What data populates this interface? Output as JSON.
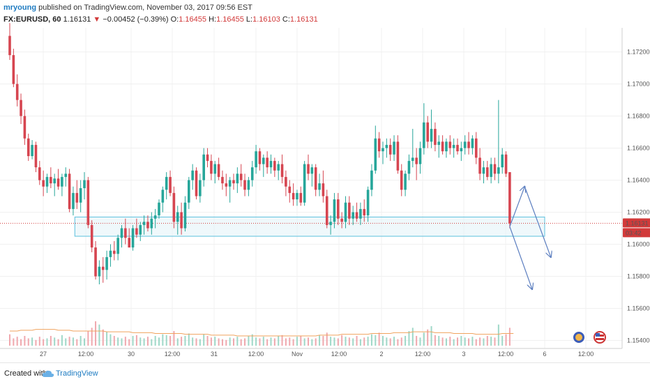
{
  "header": {
    "user": "mryoung",
    "published": "published on TradingView.com, November 03, 2017 09:56 EST",
    "symbol": "FX:EURUSD, 60",
    "last": "1.16131",
    "change_arrow": "▼",
    "change": "−0.00452 (−0.39%)",
    "o_label": "O:",
    "o_value": "1.16455",
    "h_label": "H:",
    "h_value": "1.16455",
    "l_label": "L:",
    "l_value": "1.16103",
    "c_label": "C:",
    "c_value": "1.16131"
  },
  "footer": {
    "created": "Created with",
    "brand": "TradingView",
    "logo_icon": "tradingview-cloud-icon"
  },
  "chart_data": {
    "type": "candlestick",
    "symbol": "FX:EURUSD",
    "interval": "60",
    "yticks": [
      "1.17200",
      "1.17000",
      "1.16800",
      "1.16600",
      "1.16400",
      "1.16200",
      "1.16000",
      "1.15800",
      "1.15600",
      "1.15400"
    ],
    "xticks": [
      "27",
      "12:00",
      "30",
      "12:00",
      "31",
      "12:00",
      "Nov",
      "12:00",
      "2",
      "12:00",
      "3",
      "12:00",
      "6",
      "12:00"
    ],
    "ylim": [
      1.1535,
      1.1735
    ],
    "candles": [
      {
        "o": 1.173,
        "h": 1.1738,
        "l": 1.1715,
        "c": 1.1718
      },
      {
        "o": 1.1718,
        "h": 1.1722,
        "l": 1.1698,
        "c": 1.17
      },
      {
        "o": 1.17,
        "h": 1.1706,
        "l": 1.1686,
        "c": 1.169
      },
      {
        "o": 1.169,
        "h": 1.1694,
        "l": 1.1675,
        "c": 1.168
      },
      {
        "o": 1.168,
        "h": 1.1684,
        "l": 1.1662,
        "c": 1.1666
      },
      {
        "o": 1.1666,
        "h": 1.1669,
        "l": 1.1652,
        "c": 1.1655
      },
      {
        "o": 1.1655,
        "h": 1.1665,
        "l": 1.1653,
        "c": 1.1662
      },
      {
        "o": 1.1662,
        "h": 1.1664,
        "l": 1.1645,
        "c": 1.1648
      },
      {
        "o": 1.1648,
        "h": 1.1652,
        "l": 1.1637,
        "c": 1.164
      },
      {
        "o": 1.164,
        "h": 1.1646,
        "l": 1.163,
        "c": 1.1636
      },
      {
        "o": 1.1636,
        "h": 1.1644,
        "l": 1.1632,
        "c": 1.1642
      },
      {
        "o": 1.1642,
        "h": 1.1648,
        "l": 1.1635,
        "c": 1.1638
      },
      {
        "o": 1.1638,
        "h": 1.1644,
        "l": 1.163,
        "c": 1.1641
      },
      {
        "o": 1.1641,
        "h": 1.1647,
        "l": 1.1634,
        "c": 1.1636
      },
      {
        "o": 1.1636,
        "h": 1.1644,
        "l": 1.163,
        "c": 1.1642
      },
      {
        "o": 1.1642,
        "h": 1.1648,
        "l": 1.1636,
        "c": 1.1644
      },
      {
        "o": 1.1644,
        "h": 1.1647,
        "l": 1.162,
        "c": 1.1622
      },
      {
        "o": 1.1622,
        "h": 1.1636,
        "l": 1.1618,
        "c": 1.1632
      },
      {
        "o": 1.1632,
        "h": 1.164,
        "l": 1.1622,
        "c": 1.1626
      },
      {
        "o": 1.1626,
        "h": 1.164,
        "l": 1.162,
        "c": 1.1635
      },
      {
        "o": 1.1635,
        "h": 1.1645,
        "l": 1.1628,
        "c": 1.164
      },
      {
        "o": 1.164,
        "h": 1.1642,
        "l": 1.161,
        "c": 1.1612
      },
      {
        "o": 1.1612,
        "h": 1.1615,
        "l": 1.1595,
        "c": 1.1598
      },
      {
        "o": 1.1598,
        "h": 1.1602,
        "l": 1.1578,
        "c": 1.158
      },
      {
        "o": 1.158,
        "h": 1.159,
        "l": 1.1575,
        "c": 1.1586
      },
      {
        "o": 1.1586,
        "h": 1.1592,
        "l": 1.1576,
        "c": 1.1584
      },
      {
        "o": 1.1584,
        "h": 1.1596,
        "l": 1.1578,
        "c": 1.1592
      },
      {
        "o": 1.1592,
        "h": 1.16,
        "l": 1.1586,
        "c": 1.1596
      },
      {
        "o": 1.1596,
        "h": 1.1602,
        "l": 1.159,
        "c": 1.1594
      },
      {
        "o": 1.1594,
        "h": 1.1606,
        "l": 1.159,
        "c": 1.1604
      },
      {
        "o": 1.1604,
        "h": 1.1612,
        "l": 1.1598,
        "c": 1.161
      },
      {
        "o": 1.161,
        "h": 1.1616,
        "l": 1.16,
        "c": 1.1604
      },
      {
        "o": 1.1604,
        "h": 1.161,
        "l": 1.1598,
        "c": 1.1598
      },
      {
        "o": 1.1598,
        "h": 1.1612,
        "l": 1.1596,
        "c": 1.161
      },
      {
        "o": 1.161,
        "h": 1.1616,
        "l": 1.1604,
        "c": 1.1606
      },
      {
        "o": 1.1606,
        "h": 1.1614,
        "l": 1.1602,
        "c": 1.1612
      },
      {
        "o": 1.1612,
        "h": 1.1618,
        "l": 1.1606,
        "c": 1.1614
      },
      {
        "o": 1.1614,
        "h": 1.1618,
        "l": 1.1608,
        "c": 1.161
      },
      {
        "o": 1.161,
        "h": 1.162,
        "l": 1.1606,
        "c": 1.1616
      },
      {
        "o": 1.1616,
        "h": 1.1622,
        "l": 1.161,
        "c": 1.1618
      },
      {
        "o": 1.1618,
        "h": 1.1628,
        "l": 1.1616,
        "c": 1.1626
      },
      {
        "o": 1.1626,
        "h": 1.1636,
        "l": 1.162,
        "c": 1.1634
      },
      {
        "o": 1.1634,
        "h": 1.1645,
        "l": 1.1628,
        "c": 1.1642
      },
      {
        "o": 1.1642,
        "h": 1.1646,
        "l": 1.163,
        "c": 1.1632
      },
      {
        "o": 1.1632,
        "h": 1.1636,
        "l": 1.161,
        "c": 1.1614
      },
      {
        "o": 1.1614,
        "h": 1.1624,
        "l": 1.1606,
        "c": 1.162
      },
      {
        "o": 1.162,
        "h": 1.1626,
        "l": 1.1606,
        "c": 1.161
      },
      {
        "o": 1.161,
        "h": 1.163,
        "l": 1.1608,
        "c": 1.1626
      },
      {
        "o": 1.1626,
        "h": 1.1642,
        "l": 1.1622,
        "c": 1.164
      },
      {
        "o": 1.164,
        "h": 1.165,
        "l": 1.1634,
        "c": 1.1646
      },
      {
        "o": 1.1646,
        "h": 1.1648,
        "l": 1.1628,
        "c": 1.163
      },
      {
        "o": 1.163,
        "h": 1.1644,
        "l": 1.1626,
        "c": 1.164
      },
      {
        "o": 1.164,
        "h": 1.166,
        "l": 1.1636,
        "c": 1.1656
      },
      {
        "o": 1.1656,
        "h": 1.166,
        "l": 1.1648,
        "c": 1.1652
      },
      {
        "o": 1.1652,
        "h": 1.1656,
        "l": 1.164,
        "c": 1.1644
      },
      {
        "o": 1.1644,
        "h": 1.1652,
        "l": 1.1638,
        "c": 1.165
      },
      {
        "o": 1.165,
        "h": 1.1654,
        "l": 1.164,
        "c": 1.1642
      },
      {
        "o": 1.1642,
        "h": 1.1646,
        "l": 1.1634,
        "c": 1.1638
      },
      {
        "o": 1.1638,
        "h": 1.1644,
        "l": 1.163,
        "c": 1.1636
      },
      {
        "o": 1.1636,
        "h": 1.1642,
        "l": 1.1626,
        "c": 1.164
      },
      {
        "o": 1.164,
        "h": 1.1644,
        "l": 1.1634,
        "c": 1.1638
      },
      {
        "o": 1.1638,
        "h": 1.1648,
        "l": 1.1632,
        "c": 1.1644
      },
      {
        "o": 1.1644,
        "h": 1.165,
        "l": 1.1636,
        "c": 1.164
      },
      {
        "o": 1.164,
        "h": 1.1644,
        "l": 1.163,
        "c": 1.1634
      },
      {
        "o": 1.1634,
        "h": 1.1642,
        "l": 1.163,
        "c": 1.164
      },
      {
        "o": 1.164,
        "h": 1.1652,
        "l": 1.1636,
        "c": 1.1648
      },
      {
        "o": 1.1648,
        "h": 1.1662,
        "l": 1.1644,
        "c": 1.1658
      },
      {
        "o": 1.1658,
        "h": 1.166,
        "l": 1.1646,
        "c": 1.165
      },
      {
        "o": 1.165,
        "h": 1.1656,
        "l": 1.1642,
        "c": 1.1654
      },
      {
        "o": 1.1654,
        "h": 1.1658,
        "l": 1.1644,
        "c": 1.1648
      },
      {
        "o": 1.1648,
        "h": 1.1656,
        "l": 1.1644,
        "c": 1.1652
      },
      {
        "o": 1.1652,
        "h": 1.1654,
        "l": 1.1642,
        "c": 1.1646
      },
      {
        "o": 1.1646,
        "h": 1.1652,
        "l": 1.164,
        "c": 1.165
      },
      {
        "o": 1.165,
        "h": 1.1656,
        "l": 1.1638,
        "c": 1.1642
      },
      {
        "o": 1.1642,
        "h": 1.1646,
        "l": 1.163,
        "c": 1.1636
      },
      {
        "o": 1.1636,
        "h": 1.164,
        "l": 1.1626,
        "c": 1.1632
      },
      {
        "o": 1.1632,
        "h": 1.1638,
        "l": 1.1624,
        "c": 1.1628
      },
      {
        "o": 1.1628,
        "h": 1.1634,
        "l": 1.1624,
        "c": 1.1632
      },
      {
        "o": 1.1632,
        "h": 1.1636,
        "l": 1.1624,
        "c": 1.1626
      },
      {
        "o": 1.1626,
        "h": 1.1652,
        "l": 1.1624,
        "c": 1.165
      },
      {
        "o": 1.165,
        "h": 1.1656,
        "l": 1.164,
        "c": 1.1644
      },
      {
        "o": 1.1644,
        "h": 1.165,
        "l": 1.1636,
        "c": 1.1648
      },
      {
        "o": 1.1648,
        "h": 1.165,
        "l": 1.163,
        "c": 1.1634
      },
      {
        "o": 1.1634,
        "h": 1.1644,
        "l": 1.163,
        "c": 1.1638
      },
      {
        "o": 1.1638,
        "h": 1.1646,
        "l": 1.1626,
        "c": 1.163
      },
      {
        "o": 1.163,
        "h": 1.1634,
        "l": 1.161,
        "c": 1.1612
      },
      {
        "o": 1.1612,
        "h": 1.1618,
        "l": 1.1606,
        "c": 1.1614
      },
      {
        "o": 1.1614,
        "h": 1.1632,
        "l": 1.161,
        "c": 1.1628
      },
      {
        "o": 1.1628,
        "h": 1.1632,
        "l": 1.1612,
        "c": 1.1616
      },
      {
        "o": 1.1616,
        "h": 1.162,
        "l": 1.161,
        "c": 1.1614
      },
      {
        "o": 1.1614,
        "h": 1.163,
        "l": 1.161,
        "c": 1.1626
      },
      {
        "o": 1.1626,
        "h": 1.163,
        "l": 1.1612,
        "c": 1.1616
      },
      {
        "o": 1.1616,
        "h": 1.1624,
        "l": 1.1612,
        "c": 1.162
      },
      {
        "o": 1.162,
        "h": 1.1626,
        "l": 1.1614,
        "c": 1.1616
      },
      {
        "o": 1.1616,
        "h": 1.1626,
        "l": 1.1612,
        "c": 1.1622
      },
      {
        "o": 1.1622,
        "h": 1.1628,
        "l": 1.1614,
        "c": 1.1618
      },
      {
        "o": 1.1618,
        "h": 1.1636,
        "l": 1.1614,
        "c": 1.1634
      },
      {
        "o": 1.1634,
        "h": 1.165,
        "l": 1.163,
        "c": 1.1646
      },
      {
        "o": 1.1646,
        "h": 1.1674,
        "l": 1.1644,
        "c": 1.1666
      },
      {
        "o": 1.1666,
        "h": 1.167,
        "l": 1.1654,
        "c": 1.1658
      },
      {
        "o": 1.1658,
        "h": 1.1664,
        "l": 1.165,
        "c": 1.166
      },
      {
        "o": 1.166,
        "h": 1.1666,
        "l": 1.1654,
        "c": 1.1662
      },
      {
        "o": 1.1662,
        "h": 1.1666,
        "l": 1.1652,
        "c": 1.1656
      },
      {
        "o": 1.1656,
        "h": 1.1668,
        "l": 1.1652,
        "c": 1.1664
      },
      {
        "o": 1.1664,
        "h": 1.1668,
        "l": 1.1644,
        "c": 1.1646
      },
      {
        "o": 1.1646,
        "h": 1.165,
        "l": 1.163,
        "c": 1.1634
      },
      {
        "o": 1.1634,
        "h": 1.1646,
        "l": 1.163,
        "c": 1.1644
      },
      {
        "o": 1.1644,
        "h": 1.1656,
        "l": 1.164,
        "c": 1.1652
      },
      {
        "o": 1.1652,
        "h": 1.1672,
        "l": 1.1648,
        "c": 1.1654
      },
      {
        "o": 1.1654,
        "h": 1.166,
        "l": 1.164,
        "c": 1.165
      },
      {
        "o": 1.165,
        "h": 1.1664,
        "l": 1.1644,
        "c": 1.166
      },
      {
        "o": 1.166,
        "h": 1.1688,
        "l": 1.1656,
        "c": 1.1676
      },
      {
        "o": 1.1676,
        "h": 1.168,
        "l": 1.166,
        "c": 1.1664
      },
      {
        "o": 1.1664,
        "h": 1.1684,
        "l": 1.166,
        "c": 1.1672
      },
      {
        "o": 1.1672,
        "h": 1.1676,
        "l": 1.1658,
        "c": 1.1662
      },
      {
        "o": 1.1662,
        "h": 1.1668,
        "l": 1.1654,
        "c": 1.1664
      },
      {
        "o": 1.1664,
        "h": 1.1668,
        "l": 1.1656,
        "c": 1.1658
      },
      {
        "o": 1.1658,
        "h": 1.1666,
        "l": 1.1654,
        "c": 1.1664
      },
      {
        "o": 1.1664,
        "h": 1.1668,
        "l": 1.1656,
        "c": 1.166
      },
      {
        "o": 1.166,
        "h": 1.1666,
        "l": 1.1654,
        "c": 1.1662
      },
      {
        "o": 1.1662,
        "h": 1.1666,
        "l": 1.1656,
        "c": 1.1658
      },
      {
        "o": 1.1658,
        "h": 1.1664,
        "l": 1.1652,
        "c": 1.166
      },
      {
        "o": 1.166,
        "h": 1.1668,
        "l": 1.1656,
        "c": 1.1664
      },
      {
        "o": 1.1664,
        "h": 1.167,
        "l": 1.1656,
        "c": 1.166
      },
      {
        "o": 1.166,
        "h": 1.1668,
        "l": 1.1656,
        "c": 1.1666
      },
      {
        "o": 1.1666,
        "h": 1.167,
        "l": 1.165,
        "c": 1.1654
      },
      {
        "o": 1.1654,
        "h": 1.166,
        "l": 1.164,
        "c": 1.1644
      },
      {
        "o": 1.1644,
        "h": 1.1652,
        "l": 1.1638,
        "c": 1.1648
      },
      {
        "o": 1.1648,
        "h": 1.1652,
        "l": 1.164,
        "c": 1.1642
      },
      {
        "o": 1.1642,
        "h": 1.1654,
        "l": 1.1638,
        "c": 1.165
      },
      {
        "o": 1.165,
        "h": 1.1654,
        "l": 1.164,
        "c": 1.1644
      },
      {
        "o": 1.1644,
        "h": 1.169,
        "l": 1.1638,
        "c": 1.1648
      },
      {
        "o": 1.1648,
        "h": 1.166,
        "l": 1.1644,
        "c": 1.1656
      },
      {
        "o": 1.1656,
        "h": 1.1658,
        "l": 1.1642,
        "c": 1.1644
      },
      {
        "o": 1.1645,
        "h": 1.1645,
        "l": 1.161,
        "c": 1.1613
      }
    ],
    "volume": [
      14,
      9,
      11,
      8,
      12,
      9,
      10,
      7,
      11,
      8,
      9,
      12,
      10,
      8,
      13,
      9,
      11,
      10,
      8,
      12,
      9,
      18,
      22,
      30,
      26,
      20,
      17,
      14,
      12,
      10,
      9,
      11,
      8,
      12,
      13,
      10,
      9,
      11,
      8,
      12,
      10,
      14,
      13,
      12,
      18,
      9,
      11,
      12,
      15,
      10,
      9,
      8,
      14,
      12,
      10,
      11,
      9,
      8,
      7,
      10,
      9,
      11,
      8,
      9,
      12,
      14,
      10,
      9,
      11,
      8,
      10,
      9,
      12,
      13,
      9,
      10,
      8,
      11,
      12,
      9,
      10,
      8,
      9,
      13,
      12,
      16,
      11,
      10,
      9,
      13,
      11,
      10,
      9,
      12,
      8,
      10,
      11,
      14,
      13,
      16,
      12,
      10,
      9,
      11,
      8,
      10,
      12,
      18,
      22,
      12,
      10,
      16,
      20,
      24,
      13,
      12,
      10,
      9,
      11,
      8,
      10,
      12,
      10,
      9,
      11,
      8,
      10,
      9,
      12,
      11,
      10,
      26,
      12,
      14,
      22
    ],
    "volume_ma": [
      18,
      18,
      18,
      19,
      19,
      19,
      19,
      20,
      20,
      20,
      20,
      20,
      20,
      19,
      19,
      19,
      19,
      18,
      18,
      18,
      18,
      18,
      18,
      18,
      18,
      18,
      17,
      17,
      17,
      17,
      17,
      17,
      17,
      16,
      16,
      16,
      16,
      16,
      16,
      15,
      15,
      15,
      15,
      15,
      15,
      15,
      15,
      14,
      14,
      14,
      14,
      14,
      14,
      14,
      13,
      13,
      13,
      13,
      13,
      13,
      13,
      12,
      12,
      12,
      12,
      12,
      12,
      12,
      12,
      12,
      12,
      12,
      12,
      12,
      12,
      12,
      12,
      12,
      12,
      12,
      12,
      12,
      12,
      13,
      13,
      13,
      13,
      13,
      13,
      14,
      14,
      14,
      14,
      14,
      14,
      14,
      14,
      15,
      15,
      15,
      15,
      15,
      15,
      16,
      16,
      16,
      16,
      16,
      17,
      17,
      17,
      17,
      17,
      17,
      16,
      16,
      16,
      16,
      16,
      15,
      15,
      15,
      15,
      15,
      15,
      14,
      14,
      14,
      14,
      14,
      14,
      14,
      15,
      15,
      15,
      15
    ],
    "annotations": {
      "support_zone": {
        "from": 1.1605,
        "to": 1.1617,
        "start_index": 18,
        "end_index": 134
      },
      "current_price": {
        "value": "1.16131",
        "timer": "03:42",
        "color": "#d23a3a"
      },
      "arrows": [
        {
          "from": [
            134,
            1.1611
          ],
          "to": [
            138,
            1.1636
          ]
        },
        {
          "from": [
            138,
            1.1636
          ],
          "to": [
            145,
            1.1592
          ]
        },
        {
          "from": [
            134,
            1.1611
          ],
          "to": [
            140,
            1.1572
          ]
        }
      ]
    },
    "colors": {
      "up": "#26a69a",
      "down": "#d64550",
      "zone_border": "#5bc0de",
      "zone_fill": "#e4f4f8",
      "arrow": "#5a7dbf",
      "volume_ma": "#f0a35e",
      "grid": "#f0f0f0"
    }
  }
}
